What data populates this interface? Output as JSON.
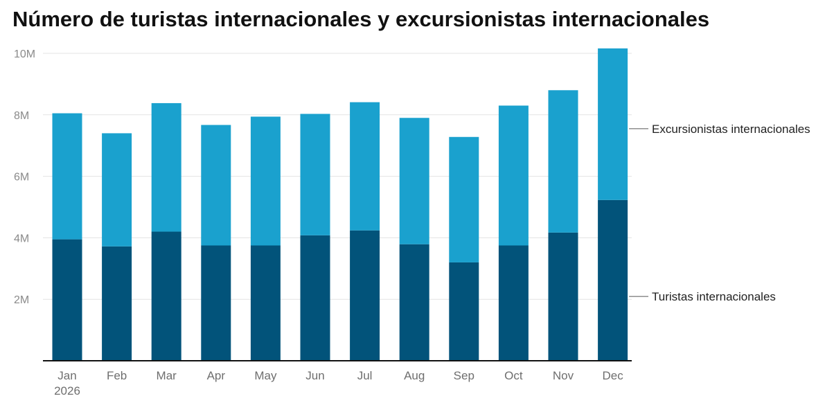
{
  "chart_data": {
    "type": "bar",
    "stacked": true,
    "title": "Número de turistas internacionales y excursionistas internacionales",
    "categories": [
      "Jan\n2026",
      "Feb",
      "Mar",
      "Apr",
      "May",
      "Jun",
      "Jul",
      "Aug",
      "Sep",
      "Oct",
      "Nov",
      "Dec"
    ],
    "series": [
      {
        "name": "Turistas internacionales",
        "color": "#02537a",
        "values": [
          3.95,
          3.72,
          4.2,
          3.75,
          3.75,
          4.08,
          4.24,
          3.79,
          3.2,
          3.75,
          4.17,
          5.23
        ]
      },
      {
        "name": "Excursionistas internacionales",
        "color": "#1aa1ce",
        "values": [
          4.1,
          3.68,
          4.18,
          3.92,
          4.19,
          3.95,
          4.17,
          4.11,
          4.08,
          4.55,
          4.63,
          4.93
        ]
      }
    ],
    "y_ticks": [
      {
        "value": 2,
        "label": "2M"
      },
      {
        "value": 4,
        "label": "4M"
      },
      {
        "value": 6,
        "label": "6M"
      },
      {
        "value": 8,
        "label": "8M"
      },
      {
        "value": 10,
        "label": "10M"
      }
    ],
    "ylim": [
      0,
      10
    ],
    "grid": true,
    "legend": "right, direct labels"
  }
}
